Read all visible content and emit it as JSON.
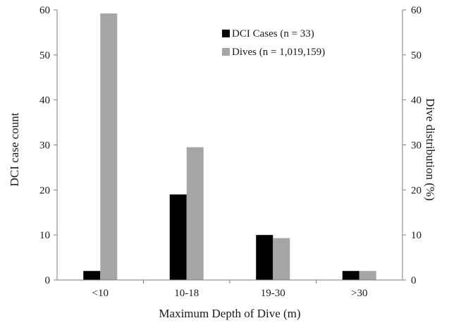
{
  "chart_data": {
    "type": "bar",
    "categories": [
      "<10",
      "10-18",
      "19-30",
      ">30"
    ],
    "series": [
      {
        "name": "DCI Cases (n = 33)",
        "axis": "left",
        "color": "#000000",
        "values": [
          2,
          19,
          10,
          2
        ]
      },
      {
        "name": "Dives (n = 1,019,159)",
        "axis": "right",
        "color": "#a6a6a6",
        "values": [
          59.2,
          29.5,
          9.3,
          2
        ]
      }
    ],
    "xlabel": "Maximum Depth of Dive (m)",
    "ylabel": "DCI case count",
    "y2label": "Dive distribution (%)",
    "ylim": [
      0,
      60
    ],
    "y2lim": [
      0,
      60
    ],
    "yticks": [
      0,
      10,
      20,
      30,
      40,
      50,
      60
    ],
    "y2ticks": [
      0,
      10,
      20,
      30,
      40,
      50,
      60
    ],
    "grid": false,
    "legend_position": "top-right"
  }
}
